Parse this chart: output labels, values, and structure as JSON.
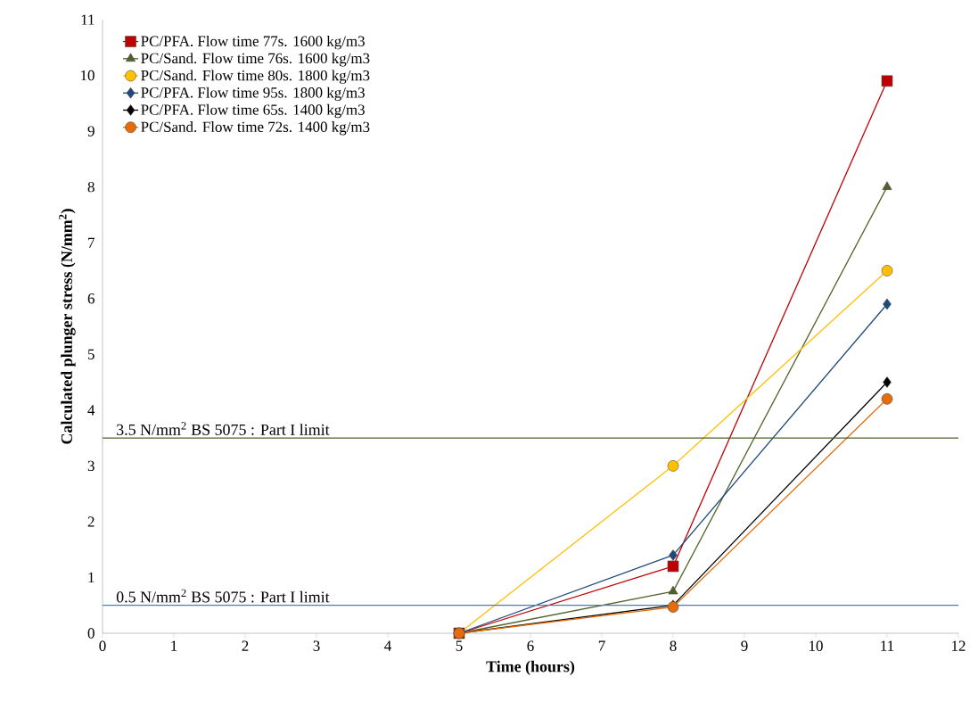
{
  "chart_data": {
    "type": "line",
    "xlabel": "Time (hours)",
    "ylabel": "Calculated  plunger stress  (N/mm$^{2}$)",
    "x": [
      5,
      8,
      11
    ],
    "series": [
      {
        "name": "PC/PFA.   Flow time 77s. 1600 kg/m3",
        "color": "#c00000",
        "marker": "square",
        "values": [
          0,
          1.2,
          9.9
        ]
      },
      {
        "name": "PC/Sand. Flow time 76s. 1600 kg/m3",
        "color": "#4f6228",
        "marker": "triangle",
        "values": [
          0,
          0.75,
          8
        ]
      },
      {
        "name": "PC/Sand.  Flow time 80s. 1800 kg/m3",
        "color": "#ffc000",
        "marker": "circle",
        "values": [
          0,
          3,
          6.5
        ]
      },
      {
        "name": "PC/PFA.   Flow time 95s. 1800 kg/m3",
        "color": "#1f497d",
        "marker": "diamond",
        "values": [
          0,
          1.4,
          5.9
        ]
      },
      {
        "name": "PC/PFA.   Flow time 65s. 1400 kg/m3",
        "color": "#000000",
        "marker": "diamond",
        "values": [
          0,
          0.5,
          4.5
        ]
      },
      {
        "name": "PC/Sand.  Flow time 72s. 1400 kg/m3",
        "color": "#e46c0a",
        "marker": "circle",
        "values": [
          0,
          0.47,
          4.2
        ]
      }
    ],
    "xlim": [
      0,
      12
    ],
    "xticks": [
      0,
      1,
      2,
      3,
      4,
      5,
      6,
      7,
      8,
      9,
      10,
      11,
      12
    ],
    "ylim": [
      0,
      11
    ],
    "yticks": [
      0,
      1,
      2,
      3,
      4,
      5,
      6,
      7,
      8,
      9,
      10,
      11
    ],
    "ref_lines": [
      {
        "axis": "y",
        "value": 3.5,
        "label": "3.5 N/mm$^{2}$  BS 5075 : Part I limit",
        "color": "#4f6228"
      },
      {
        "axis": "y",
        "value": 0.5,
        "label": "0.5 N/mm$^{2}$  BS 5075 : Part I limit",
        "color": "#4a7ebb"
      }
    ],
    "legend": "top left",
    "grid": false,
    "line_style": "solid"
  }
}
